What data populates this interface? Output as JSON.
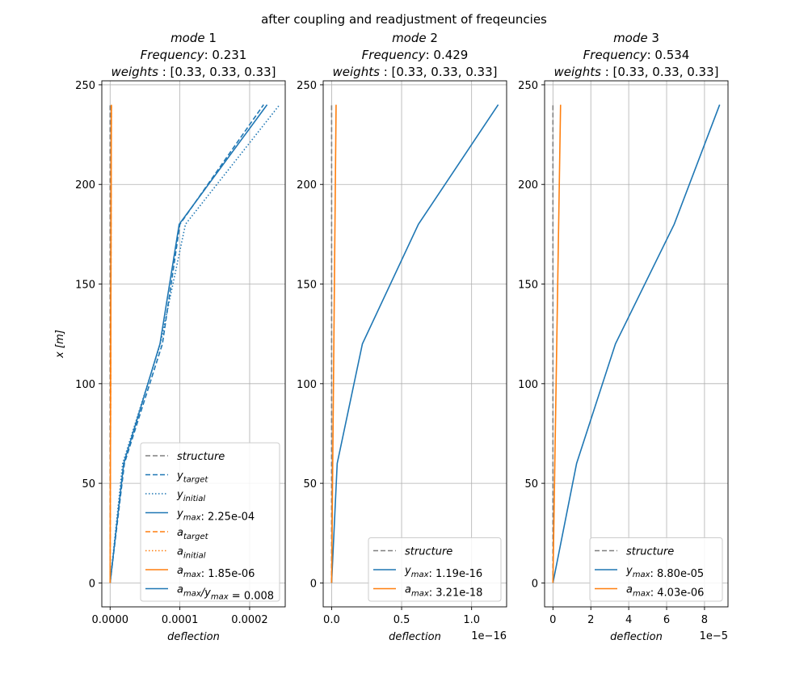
{
  "figure": {
    "suptitle": "after coupling and readjustment of freqeuncies"
  },
  "colors": {
    "blue": "#1f77b4",
    "orange": "#ff7f0e",
    "gray": "#7f7f7f",
    "grid": "#b0b0b0"
  },
  "chart_data": [
    {
      "type": "line",
      "title_lines": [
        "mode 1",
        "Frequency: 0.231",
        "weights : [0.33, 0.33, 0.33]"
      ],
      "xlabel": "deflection",
      "ylabel": "x [m]",
      "xlim": [
        -1.19e-05,
        0.000251
      ],
      "ylim": [
        -12,
        252
      ],
      "xticks": [
        0,
        0.0001,
        0.0002
      ],
      "xtick_labels": [
        "0.0000",
        "0.0001",
        "0.0002"
      ],
      "xoffset_label": "",
      "yticks": [
        0,
        50,
        100,
        150,
        200,
        250
      ],
      "ytick_labels": [
        "0",
        "50",
        "100",
        "150",
        "200",
        "250"
      ],
      "grid": true,
      "legend_position": "lower-right",
      "series": [
        {
          "name": "structure",
          "color": "gray",
          "dash": "dashed",
          "x": [
            0,
            0
          ],
          "y": [
            0,
            240
          ]
        },
        {
          "name": "y_target",
          "color": "blue",
          "dash": "dashed",
          "x": [
            0,
            2.05e-05,
            7.5e-05,
            0.0001,
            0.00022
          ],
          "y": [
            0,
            60,
            120,
            180,
            240
          ]
        },
        {
          "name": "y_initial",
          "color": "blue",
          "dash": "dotted",
          "x": [
            0,
            1.8e-05,
            7.2e-05,
            0.000108,
            0.000243
          ],
          "y": [
            0,
            60,
            120,
            180,
            240
          ]
        },
        {
          "name": "y_max",
          "color": "blue",
          "dash": "solid",
          "x": [
            0,
            1.95e-05,
            7.15e-05,
            9.9e-05,
            0.000225
          ],
          "y": [
            0,
            60,
            120,
            180,
            240
          ],
          "legend_value": "2.25e-04"
        },
        {
          "name": "a_target",
          "color": "orange",
          "dash": "dashed",
          "x": [
            0,
            1.8e-06
          ],
          "y": [
            0,
            240
          ]
        },
        {
          "name": "a_initial",
          "color": "orange",
          "dash": "dotted",
          "x": [
            0,
            1.8e-06
          ],
          "y": [
            0,
            240
          ]
        },
        {
          "name": "a_max",
          "color": "orange",
          "dash": "solid",
          "x": [
            0,
            1.85e-06
          ],
          "y": [
            0,
            240
          ],
          "legend_value": "1.85e-06"
        },
        {
          "name": "a_max/y_max",
          "color": "blue",
          "dash": "solid",
          "x": [],
          "y": [],
          "legend_value": "0.008"
        }
      ]
    },
    {
      "type": "line",
      "title_lines": [
        "mode 2",
        "Frequency: 0.429",
        "weights : [0.33, 0.33, 0.33]"
      ],
      "xlabel": "deflection",
      "ylabel": "",
      "xlim": [
        -0.06,
        1.25
      ],
      "ylim": [
        -12,
        252
      ],
      "xticks": [
        0,
        0.5,
        1.0
      ],
      "xtick_labels": [
        "0.0",
        "0.5",
        "1.0"
      ],
      "xoffset_label": "1e−16",
      "yticks": [
        0,
        50,
        100,
        150,
        200,
        250
      ],
      "ytick_labels": [
        "0",
        "50",
        "100",
        "150",
        "200",
        "250"
      ],
      "grid": true,
      "legend_position": "lower-right",
      "series": [
        {
          "name": "structure",
          "color": "gray",
          "dash": "dashed",
          "x": [
            0,
            0
          ],
          "y": [
            0,
            240
          ]
        },
        {
          "name": "y_max",
          "color": "blue",
          "dash": "solid",
          "x": [
            0,
            0.04,
            0.22,
            0.62,
            1.19
          ],
          "y": [
            0,
            60,
            120,
            180,
            240
          ],
          "legend_value": "1.19e-16"
        },
        {
          "name": "a_max",
          "color": "orange",
          "dash": "solid",
          "x": [
            0,
            0.0321
          ],
          "y": [
            0,
            240
          ],
          "legend_value": "3.21e-18"
        }
      ]
    },
    {
      "type": "line",
      "title_lines": [
        "mode 3",
        "Frequency: 0.534",
        "weights : [0.33, 0.33, 0.33]"
      ],
      "xlabel": "deflection",
      "ylabel": "",
      "xlim": [
        -0.44,
        9.24
      ],
      "ylim": [
        -12,
        252
      ],
      "xticks": [
        0,
        2,
        4,
        6,
        8
      ],
      "xtick_labels": [
        "0",
        "2",
        "4",
        "6",
        "8"
      ],
      "xoffset_label": "1e−5",
      "yticks": [
        0,
        50,
        100,
        150,
        200,
        250
      ],
      "ytick_labels": [
        "0",
        "50",
        "100",
        "150",
        "200",
        "250"
      ],
      "grid": true,
      "legend_position": "lower-right",
      "series": [
        {
          "name": "structure",
          "color": "gray",
          "dash": "dashed",
          "x": [
            0,
            0
          ],
          "y": [
            0,
            240
          ]
        },
        {
          "name": "y_max",
          "color": "blue",
          "dash": "solid",
          "x": [
            0,
            1.25,
            3.3,
            6.4,
            8.8
          ],
          "y": [
            0,
            60,
            120,
            180,
            240
          ],
          "legend_value": "8.80e-05"
        },
        {
          "name": "a_max",
          "color": "orange",
          "dash": "solid",
          "x": [
            0,
            0.403
          ],
          "y": [
            0,
            240
          ],
          "legend_value": "4.03e-06"
        }
      ]
    }
  ]
}
